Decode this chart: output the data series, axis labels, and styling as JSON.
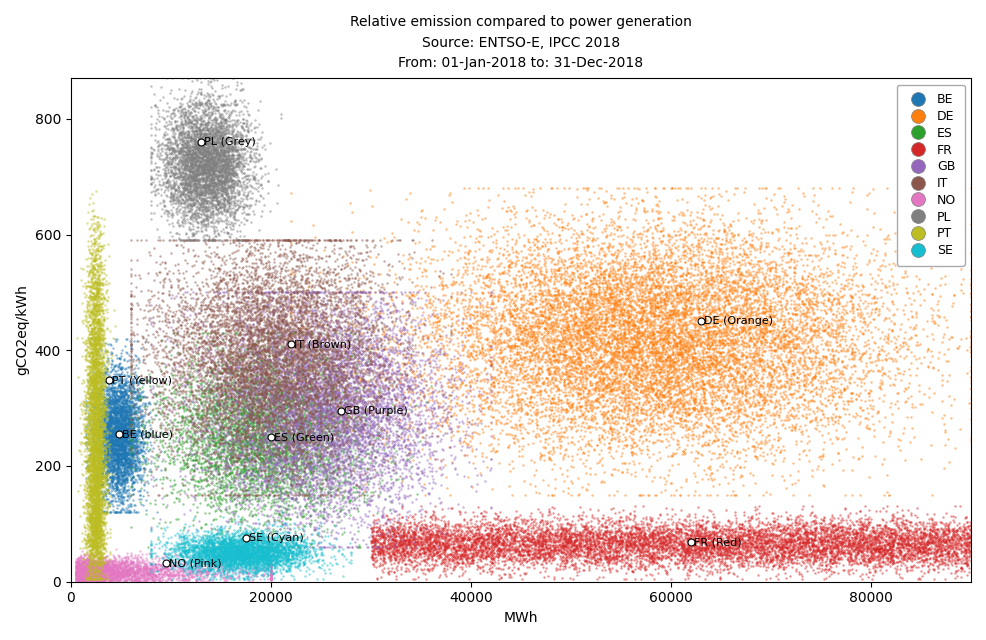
{
  "title_line1": "Relative emission compared to power generation",
  "title_line2": "Source: ENTSO-E, IPCC 2018",
  "title_line3": "From: 01-Jan-2018 to: 31-Dec-2018",
  "xlabel": "MWh",
  "ylabel": "gCO2eq/kWh",
  "xlim": [
    0,
    90000
  ],
  "ylim": [
    0,
    870
  ],
  "countries": {
    "BE": {
      "color": "#1f77b4",
      "label": "BE (blue)",
      "n": 4000,
      "ann_x": 4800,
      "ann_y": 255
    },
    "DE": {
      "color": "#ff7f0e",
      "label": "DE (Orange)",
      "n": 15000,
      "ann_x": 63000,
      "ann_y": 450
    },
    "ES": {
      "color": "#2ca02c",
      "label": "ES (Green)",
      "n": 5000,
      "ann_x": 20000,
      "ann_y": 250
    },
    "FR": {
      "color": "#d62728",
      "label": "FR (Red)",
      "n": 10000,
      "ann_x": 62000,
      "ann_y": 68
    },
    "GB": {
      "color": "#9467bd",
      "label": "GB (Purple)",
      "n": 8000,
      "ann_x": 27000,
      "ann_y": 295
    },
    "IT": {
      "color": "#8c564b",
      "label": "IT (Brown)",
      "n": 8000,
      "ann_x": 22000,
      "ann_y": 410
    },
    "NO": {
      "color": "#e377c2",
      "label": "NO (Pink)",
      "n": 3000,
      "ann_x": 9500,
      "ann_y": 32
    },
    "PL": {
      "color": "#7f7f7f",
      "label": "PL (Grey)",
      "n": 5000,
      "ann_x": 13000,
      "ann_y": 760
    },
    "PT": {
      "color": "#bcbd22",
      "label": "PT (Yellow)",
      "n": 5000,
      "ann_x": 3800,
      "ann_y": 348
    },
    "SE": {
      "color": "#17becf",
      "label": "SE (Cyan)",
      "n": 4000,
      "ann_x": 17500,
      "ann_y": 75
    }
  },
  "background_color": "#ffffff",
  "alpha": 0.5,
  "point_size": 3
}
